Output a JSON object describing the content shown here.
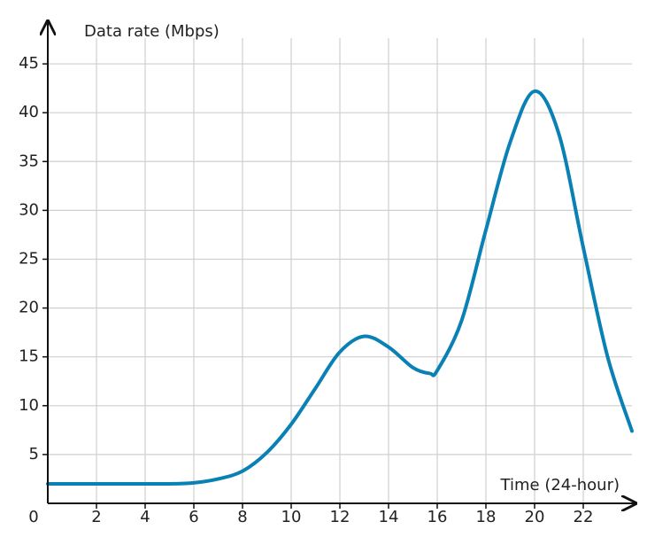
{
  "chart_data": {
    "type": "line",
    "y_axis_label": "Data rate (Mbps)",
    "x_axis_label": "Time (24-hour)",
    "x": [
      0,
      1,
      2,
      3,
      4,
      5,
      6,
      7,
      8,
      9,
      10,
      11,
      12,
      13,
      14,
      15,
      15.7,
      16,
      17,
      18,
      19,
      20,
      21,
      22,
      23,
      24
    ],
    "series": [
      {
        "color": "#0a81b4",
        "values": [
          2,
          2,
          2,
          2,
          2,
          2,
          2.1,
          2.5,
          3.3,
          5.2,
          8.1,
          11.8,
          15.5,
          17.1,
          16,
          13.9,
          13.3,
          13.6,
          18.7,
          28,
          37,
          42.2,
          37.8,
          26.2,
          15,
          7.4
        ]
      }
    ],
    "xlim": [
      0,
      24
    ],
    "ylim": [
      0,
      49
    ],
    "xticks": [
      0,
      2,
      4,
      6,
      8,
      10,
      12,
      14,
      16,
      18,
      20,
      22
    ],
    "yticks": [
      5,
      10,
      15,
      20,
      25,
      30,
      35,
      40,
      45
    ],
    "grid": true
  }
}
